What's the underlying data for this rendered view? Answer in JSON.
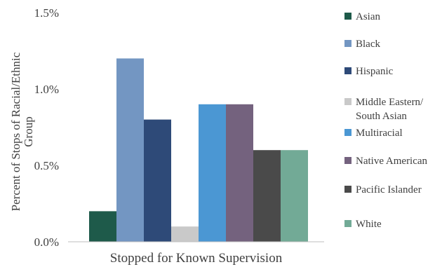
{
  "chart_data": {
    "type": "bar",
    "title": "",
    "categories": [
      "Stopped for Known Supervision"
    ],
    "xlabel": "Stopped for Known Supervision",
    "ylabel_lines": [
      "Percent of Stops of  Racial/Ethnic",
      "Group"
    ],
    "ylim": [
      0,
      1.5
    ],
    "yticks": [
      {
        "value": 0.0,
        "label": "0.0%"
      },
      {
        "value": 0.5,
        "label": "0.5%"
      },
      {
        "value": 1.0,
        "label": "1.0%"
      },
      {
        "value": 1.5,
        "label": "1.5%"
      }
    ],
    "grid": false,
    "legend_position": "right",
    "series": [
      {
        "name": "Asian",
        "name_lines": [
          "Asian"
        ],
        "value": 0.2,
        "color": "#1e5a4a"
      },
      {
        "name": "Black",
        "name_lines": [
          "Black"
        ],
        "value": 1.2,
        "color": "#7396c2"
      },
      {
        "name": "Hispanic",
        "name_lines": [
          "Hispanic"
        ],
        "value": 0.8,
        "color": "#2e4a78"
      },
      {
        "name": "Middle Eastern/ South Asian",
        "name_lines": [
          "Middle Eastern/",
          "South Asian"
        ],
        "value": 0.1,
        "color": "#c9c9c9"
      },
      {
        "name": "Multiracial",
        "name_lines": [
          "Multiracial"
        ],
        "value": 0.9,
        "color": "#4b97d3"
      },
      {
        "name": "Native American",
        "name_lines": [
          "Native American"
        ],
        "value": 0.9,
        "color": "#74627e"
      },
      {
        "name": "Pacific Islander",
        "name_lines": [
          "Pacific Islander"
        ],
        "value": 0.6,
        "color": "#4a4a4a"
      },
      {
        "name": "White",
        "name_lines": [
          "White"
        ],
        "value": 0.6,
        "color": "#72aa96"
      }
    ]
  }
}
